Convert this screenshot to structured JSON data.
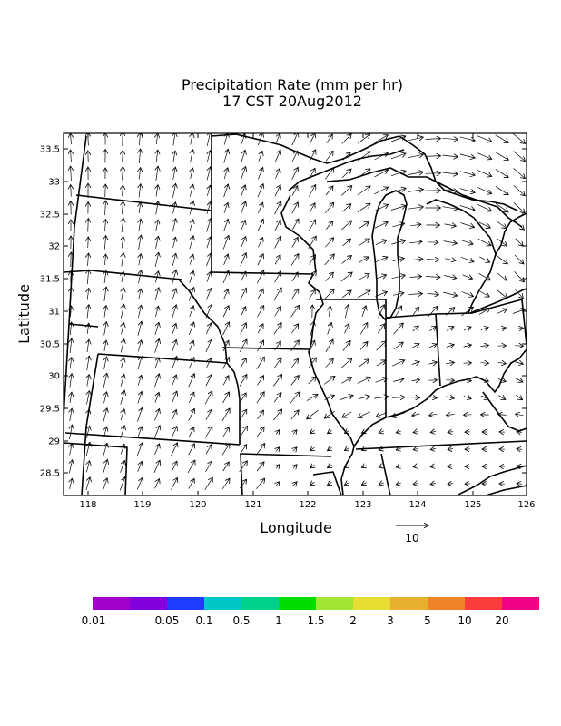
{
  "title": {
    "line1": "Precipitation Rate (mm per hr)",
    "line2": "17 CST 20Aug2012"
  },
  "axes": {
    "xlabel": "Longitude",
    "ylabel": "Latitude",
    "x_ticks": [
      "118",
      "119",
      "120",
      "121",
      "122",
      "123",
      "124",
      "125",
      "126"
    ],
    "y_ticks": [
      "33.5",
      "33",
      "32.5",
      "32",
      "31.5",
      "31",
      "30.5",
      "30",
      "29.5",
      "29",
      "28.5"
    ]
  },
  "vector_reference": {
    "label": "10"
  },
  "colorbar": {
    "colors": [
      "#a000c8",
      "#8200dc",
      "#1e3cff",
      "#00c8c8",
      "#00d28c",
      "#00dc00",
      "#a0e632",
      "#e6dc32",
      "#e6af2d",
      "#f08228",
      "#fa3c3c",
      "#f00082"
    ],
    "labels": [
      "0.01",
      "0.05",
      "0.1",
      "0.5",
      "1",
      "1.5",
      "2",
      "3",
      "5",
      "10",
      "20"
    ]
  }
}
